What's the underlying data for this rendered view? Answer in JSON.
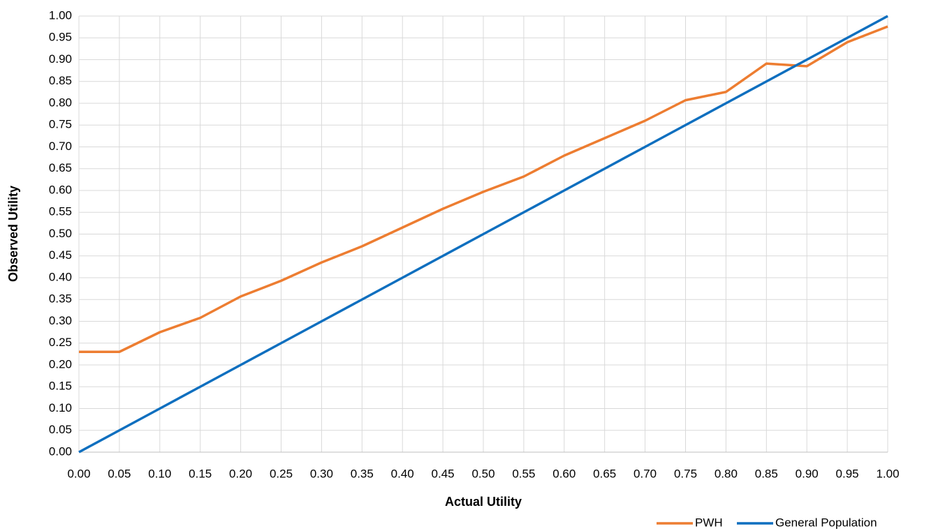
{
  "chart_data": {
    "type": "line",
    "x_label": "Actual Utility",
    "y_label": "Observed Utility",
    "x": [
      0,
      0.05,
      0.1,
      0.15,
      0.2,
      0.25,
      0.3,
      0.35,
      0.4,
      0.45,
      0.5,
      0.55,
      0.6,
      0.65,
      0.7,
      0.75,
      0.8,
      0.85,
      0.9,
      0.95,
      1
    ],
    "series": [
      {
        "name": "PWH",
        "color": "#ed7d31",
        "values": [
          0.23,
          0.23,
          0.275,
          0.308,
          0.357,
          0.393,
          0.435,
          0.472,
          0.515,
          0.558,
          0.597,
          0.632,
          0.68,
          0.72,
          0.76,
          0.807,
          0.826,
          0.891,
          0.885,
          0.94,
          0.976
        ]
      },
      {
        "name": "General Population",
        "color": "#0f6fbf",
        "values": [
          0,
          0.05,
          0.1,
          0.15,
          0.2,
          0.25,
          0.3,
          0.35,
          0.4,
          0.45,
          0.5,
          0.55,
          0.6,
          0.65,
          0.7,
          0.75,
          0.8,
          0.85,
          0.9,
          0.95,
          1
        ]
      }
    ],
    "xlim": [
      0,
      1
    ],
    "ylim": [
      0,
      1
    ],
    "xticks": [
      {
        "value": 0,
        "label": "0.00"
      },
      {
        "value": 0.05,
        "label": "0.05"
      },
      {
        "value": 0.1,
        "label": "0.10"
      },
      {
        "value": 0.15,
        "label": "0.15"
      },
      {
        "value": 0.2,
        "label": "0.20"
      },
      {
        "value": 0.25,
        "label": "0.25"
      },
      {
        "value": 0.3,
        "label": "0.30"
      },
      {
        "value": 0.35,
        "label": "0.35"
      },
      {
        "value": 0.4,
        "label": "0.40"
      },
      {
        "value": 0.45,
        "label": "0.45"
      },
      {
        "value": 0.5,
        "label": "0.50"
      },
      {
        "value": 0.55,
        "label": "0.55"
      },
      {
        "value": 0.6,
        "label": "0.60"
      },
      {
        "value": 0.65,
        "label": "0.65"
      },
      {
        "value": 0.7,
        "label": "0.70"
      },
      {
        "value": 0.75,
        "label": "0.75"
      },
      {
        "value": 0.8,
        "label": "0.80"
      },
      {
        "value": 0.85,
        "label": "0.85"
      },
      {
        "value": 0.9,
        "label": "0.90"
      },
      {
        "value": 0.95,
        "label": "0.95"
      },
      {
        "value": 1,
        "label": "1.00"
      }
    ],
    "yticks": [
      {
        "value": 0,
        "label": "0.00"
      },
      {
        "value": 0.05,
        "label": "0.05"
      },
      {
        "value": 0.1,
        "label": "0.10"
      },
      {
        "value": 0.15,
        "label": "0.15"
      },
      {
        "value": 0.2,
        "label": "0.20"
      },
      {
        "value": 0.25,
        "label": "0.25"
      },
      {
        "value": 0.3,
        "label": "0.30"
      },
      {
        "value": 0.35,
        "label": "0.35"
      },
      {
        "value": 0.4,
        "label": "0.40"
      },
      {
        "value": 0.45,
        "label": "0.45"
      },
      {
        "value": 0.5,
        "label": "0.50"
      },
      {
        "value": 0.55,
        "label": "0.55"
      },
      {
        "value": 0.6,
        "label": "0.60"
      },
      {
        "value": 0.65,
        "label": "0.65"
      },
      {
        "value": 0.7,
        "label": "0.70"
      },
      {
        "value": 0.75,
        "label": "0.75"
      },
      {
        "value": 0.8,
        "label": "0.80"
      },
      {
        "value": 0.85,
        "label": "0.85"
      },
      {
        "value": 0.9,
        "label": "0.90"
      },
      {
        "value": 0.95,
        "label": "0.95"
      },
      {
        "value": 1,
        "label": "1.00"
      }
    ],
    "grid": true,
    "legend": "bottom-right"
  }
}
